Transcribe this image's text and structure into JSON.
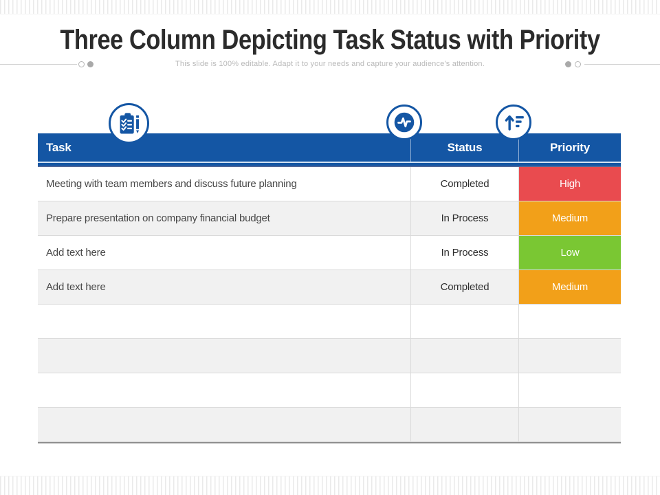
{
  "slide": {
    "title": "Three Column Depicting Task Status with Priority",
    "subtitle": "This slide is 100% editable. Adapt it to your needs and capture your audience's attention."
  },
  "icons": {
    "left": "clipboard-checklist-icon",
    "middle": "pulse-icon",
    "right": "sort-ascending-icon"
  },
  "table": {
    "columns": [
      {
        "key": "task",
        "label": "Task"
      },
      {
        "key": "status",
        "label": "Status"
      },
      {
        "key": "priority",
        "label": "Priority"
      }
    ],
    "rows": [
      {
        "task": "Meeting with team members and discuss future planning",
        "status": "Completed",
        "priority": "High",
        "priority_color": "#e94b4f"
      },
      {
        "task": "Prepare presentation on company financial budget",
        "status": "In Process",
        "priority": "Medium",
        "priority_color": "#f2a019"
      },
      {
        "task": "Add text here",
        "status": "In Process",
        "priority": "Low",
        "priority_color": "#7ac733"
      },
      {
        "task": "Add text here",
        "status": "Completed",
        "priority": "Medium",
        "priority_color": "#f2a019"
      },
      {
        "task": "",
        "status": "",
        "priority": "",
        "priority_color": ""
      },
      {
        "task": "",
        "status": "",
        "priority": "",
        "priority_color": ""
      },
      {
        "task": "",
        "status": "",
        "priority": "",
        "priority_color": ""
      },
      {
        "task": "",
        "status": "",
        "priority": "",
        "priority_color": ""
      }
    ]
  },
  "colors": {
    "header_blue": "#1456a4",
    "priority_high": "#e94b4f",
    "priority_medium": "#f2a019",
    "priority_low": "#7ac733",
    "row_alternate": "#f1f1f1",
    "grid_line": "#dadada"
  }
}
